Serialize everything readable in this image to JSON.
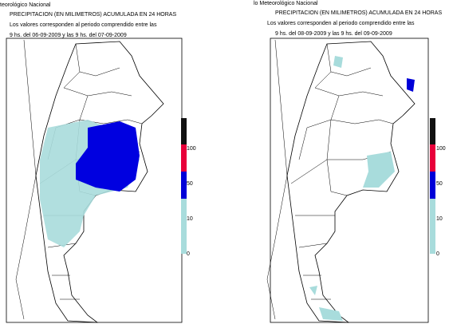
{
  "panels": [
    {
      "header": [
        "teorológico Nacional",
        "PRECIPITACION (EN MILIMETROS) ACUMULADA EN 24 HORAS",
        "Los valores corresponden al periodo comprendido entre las",
        "9 hs. del 06-09-2009  y las 9 hs. del 07-09-2009"
      ],
      "legend_labels": [
        "100",
        "50",
        "10",
        "0"
      ]
    },
    {
      "header": [
        "lo Meteorológico Nacional",
        "PRECIPITACION (EN MILIMETROS) ACUMULADA EN 24 HORAS",
        "Los valores corresponden al periodo comprendido entre las",
        "9 hs. del 08-09-2009  y las 9 hs. del 09-09-2009"
      ],
      "legend_labels": [
        "100",
        "50",
        "10",
        "0"
      ]
    }
  ]
}
